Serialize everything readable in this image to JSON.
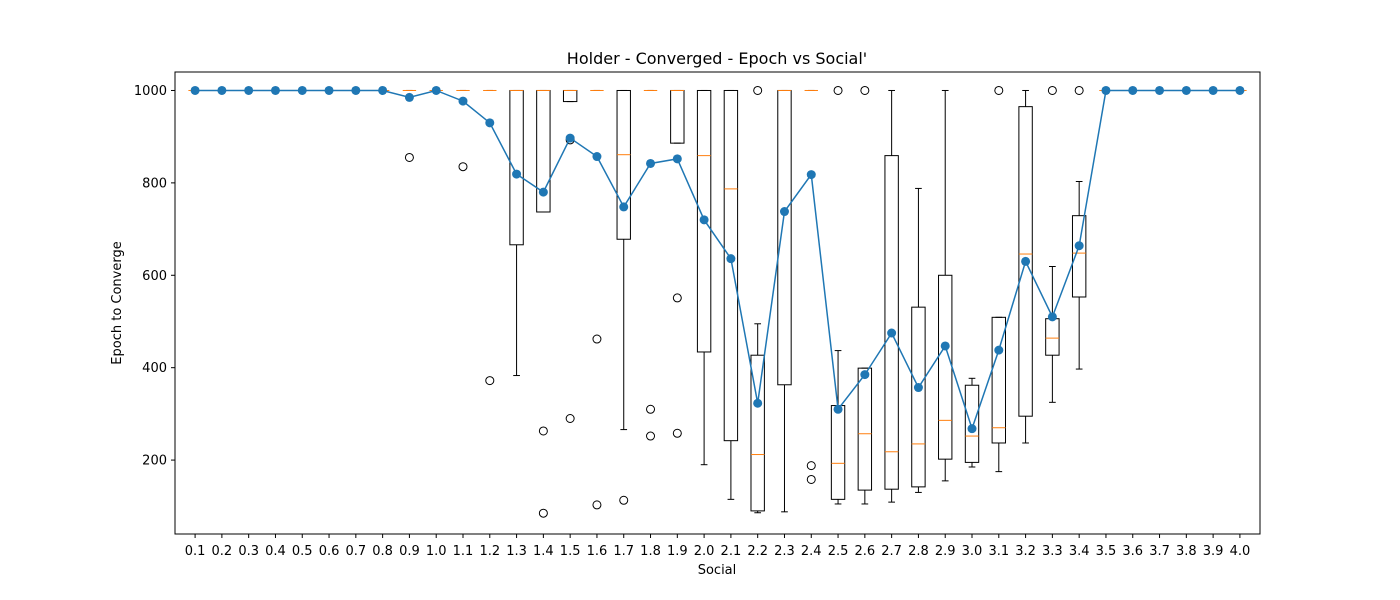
{
  "chart_data": {
    "type": "box+line",
    "title": "Holder - Converged - Epoch vs Social'",
    "xlabel": "Social",
    "ylabel": "Epoch to Converge",
    "ylim": [
      40,
      1040
    ],
    "yticks": [
      200,
      400,
      600,
      800,
      1000
    ],
    "categories": [
      "0.1",
      "0.2",
      "0.3",
      "0.4",
      "0.5",
      "0.6",
      "0.7",
      "0.8",
      "0.9",
      "1.0",
      "1.1",
      "1.2",
      "1.3",
      "1.4",
      "1.5",
      "1.6",
      "1.7",
      "1.8",
      "1.9",
      "2.0",
      "2.1",
      "2.2",
      "2.3",
      "2.4",
      "2.5",
      "2.6",
      "2.7",
      "2.8",
      "2.9",
      "3.0",
      "3.1",
      "3.2",
      "3.3",
      "3.4",
      "3.5",
      "3.6",
      "3.7",
      "3.8",
      "3.9",
      "4.0"
    ],
    "boxes": [
      {
        "q1": 1000,
        "med": 1000,
        "q3": 1000,
        "wl": 1000,
        "wh": 1000,
        "fliers": []
      },
      {
        "q1": 1000,
        "med": 1000,
        "q3": 1000,
        "wl": 1000,
        "wh": 1000,
        "fliers": []
      },
      {
        "q1": 1000,
        "med": 1000,
        "q3": 1000,
        "wl": 1000,
        "wh": 1000,
        "fliers": []
      },
      {
        "q1": 1000,
        "med": 1000,
        "q3": 1000,
        "wl": 1000,
        "wh": 1000,
        "fliers": []
      },
      {
        "q1": 1000,
        "med": 1000,
        "q3": 1000,
        "wl": 1000,
        "wh": 1000,
        "fliers": []
      },
      {
        "q1": 1000,
        "med": 1000,
        "q3": 1000,
        "wl": 1000,
        "wh": 1000,
        "fliers": []
      },
      {
        "q1": 1000,
        "med": 1000,
        "q3": 1000,
        "wl": 1000,
        "wh": 1000,
        "fliers": []
      },
      {
        "q1": 1000,
        "med": 1000,
        "q3": 1000,
        "wl": 1000,
        "wh": 1000,
        "fliers": []
      },
      {
        "q1": 1000,
        "med": 1000,
        "q3": 1000,
        "wl": 1000,
        "wh": 1000,
        "fliers": [
          855
        ]
      },
      {
        "q1": 1000,
        "med": 1000,
        "q3": 1000,
        "wl": 1000,
        "wh": 1000,
        "fliers": []
      },
      {
        "q1": 1000,
        "med": 1000,
        "q3": 1000,
        "wl": 1000,
        "wh": 1000,
        "fliers": [
          835
        ]
      },
      {
        "q1": 1000,
        "med": 1000,
        "q3": 1000,
        "wl": 1000,
        "wh": 1000,
        "fliers": [
          372
        ]
      },
      {
        "q1": 666,
        "med": 1000,
        "q3": 1000,
        "wl": 383,
        "wh": 1000,
        "fliers": []
      },
      {
        "q1": 737,
        "med": 1000,
        "q3": 1000,
        "wl": 737,
        "wh": 1000,
        "fliers": [
          263,
          85
        ]
      },
      {
        "q1": 976,
        "med": 1000,
        "q3": 1000,
        "wl": 976,
        "wh": 1000,
        "fliers": [
          893,
          290
        ]
      },
      {
        "q1": 1000,
        "med": 1000,
        "q3": 1000,
        "wl": 1000,
        "wh": 1000,
        "fliers": [
          462,
          103
        ]
      },
      {
        "q1": 678,
        "med": 861,
        "q3": 1000,
        "wl": 266,
        "wh": 1000,
        "fliers": [
          113
        ]
      },
      {
        "q1": 1000,
        "med": 1000,
        "q3": 1000,
        "wl": 1000,
        "wh": 1000,
        "fliers": [
          310,
          252
        ]
      },
      {
        "q1": 886,
        "med": 1000,
        "q3": 1000,
        "wl": 886,
        "wh": 1000,
        "fliers": [
          551,
          258
        ]
      },
      {
        "q1": 434,
        "med": 859,
        "q3": 1000,
        "wl": 190,
        "wh": 1000,
        "fliers": []
      },
      {
        "q1": 242,
        "med": 787,
        "q3": 1000,
        "wl": 115,
        "wh": 1000,
        "fliers": []
      },
      {
        "q1": 90,
        "med": 212,
        "q3": 427,
        "wl": 86,
        "wh": 495,
        "fliers": [
          1000
        ]
      },
      {
        "q1": 363,
        "med": 1000,
        "q3": 1000,
        "wl": 88,
        "wh": 1000,
        "fliers": []
      },
      {
        "q1": 1000,
        "med": 1000,
        "q3": 1000,
        "wl": 1000,
        "wh": 1000,
        "fliers": [
          188,
          158
        ]
      },
      {
        "q1": 115,
        "med": 193,
        "q3": 318,
        "wl": 105,
        "wh": 437,
        "fliers": [
          1000
        ]
      },
      {
        "q1": 135,
        "med": 257,
        "q3": 399,
        "wl": 105,
        "wh": 399,
        "fliers": [
          1000
        ]
      },
      {
        "q1": 137,
        "med": 218,
        "q3": 859,
        "wl": 109,
        "wh": 1000,
        "fliers": []
      },
      {
        "q1": 142,
        "med": 235,
        "q3": 531,
        "wl": 130,
        "wh": 788,
        "fliers": []
      },
      {
        "q1": 202,
        "med": 286,
        "q3": 600,
        "wl": 155,
        "wh": 1000,
        "fliers": []
      },
      {
        "q1": 195,
        "med": 252,
        "q3": 362,
        "wl": 185,
        "wh": 377,
        "fliers": []
      },
      {
        "q1": 237,
        "med": 270,
        "q3": 509,
        "wl": 175,
        "wh": 509,
        "fliers": [
          1000
        ]
      },
      {
        "q1": 295,
        "med": 646,
        "q3": 965,
        "wl": 237,
        "wh": 1000,
        "fliers": []
      },
      {
        "q1": 427,
        "med": 464,
        "q3": 506,
        "wl": 325,
        "wh": 619,
        "fliers": [
          1000
        ]
      },
      {
        "q1": 553,
        "med": 648,
        "q3": 729,
        "wl": 397,
        "wh": 803,
        "fliers": [
          1000
        ]
      },
      {
        "q1": 1000,
        "med": 1000,
        "q3": 1000,
        "wl": 1000,
        "wh": 1000,
        "fliers": []
      },
      {
        "q1": 1000,
        "med": 1000,
        "q3": 1000,
        "wl": 1000,
        "wh": 1000,
        "fliers": []
      },
      {
        "q1": 1000,
        "med": 1000,
        "q3": 1000,
        "wl": 1000,
        "wh": 1000,
        "fliers": []
      },
      {
        "q1": 1000,
        "med": 1000,
        "q3": 1000,
        "wl": 1000,
        "wh": 1000,
        "fliers": []
      },
      {
        "q1": 1000,
        "med": 1000,
        "q3": 1000,
        "wl": 1000,
        "wh": 1000,
        "fliers": []
      },
      {
        "q1": 1000,
        "med": 1000,
        "q3": 1000,
        "wl": 1000,
        "wh": 1000,
        "fliers": []
      }
    ],
    "mean_line": [
      1000,
      1000,
      1000,
      1000,
      1000,
      1000,
      1000,
      1000,
      985,
      1000,
      977,
      930,
      819,
      780,
      897,
      857,
      748,
      842,
      852,
      720,
      636,
      323,
      738,
      818,
      310,
      385,
      475,
      357,
      447,
      268,
      438,
      630,
      510,
      664,
      1000,
      1000,
      1000,
      1000,
      1000,
      1000
    ],
    "colors": {
      "mean_line": "#1f77b4",
      "median": "#ff7f0e",
      "box": "#000000"
    },
    "grid": false,
    "legend": "none"
  }
}
